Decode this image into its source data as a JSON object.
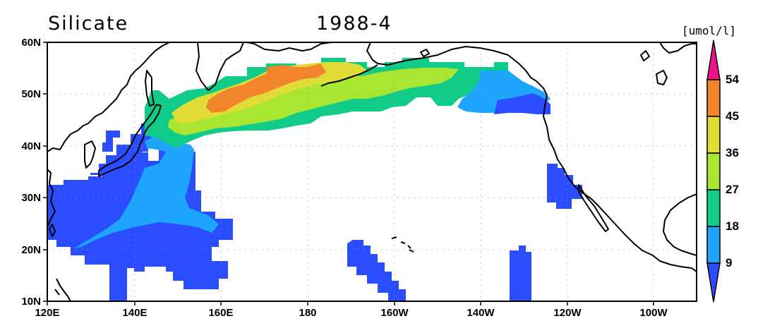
{
  "header": {
    "variable": "Silicate",
    "date": "1988-4",
    "units": "[umol/l]"
  },
  "map": {
    "lon_labels": [
      "120E",
      "140E",
      "160E",
      "180",
      "160W",
      "140W",
      "120W",
      "100W"
    ],
    "lat_labels": [
      "10N",
      "20N",
      "30N",
      "40N",
      "50N",
      "60N"
    ]
  },
  "colorbar": {
    "labels": [
      "9",
      "18",
      "27",
      "36",
      "45",
      "54"
    ],
    "colors": {
      "below_9": "#2a4dff",
      "9_18": "#1ea5ff",
      "18_27": "#10cc88",
      "27_36": "#a8e632",
      "36_45": "#e2dd36",
      "45_54": "#f2842c",
      "above_54": "#f0148c"
    }
  }
}
